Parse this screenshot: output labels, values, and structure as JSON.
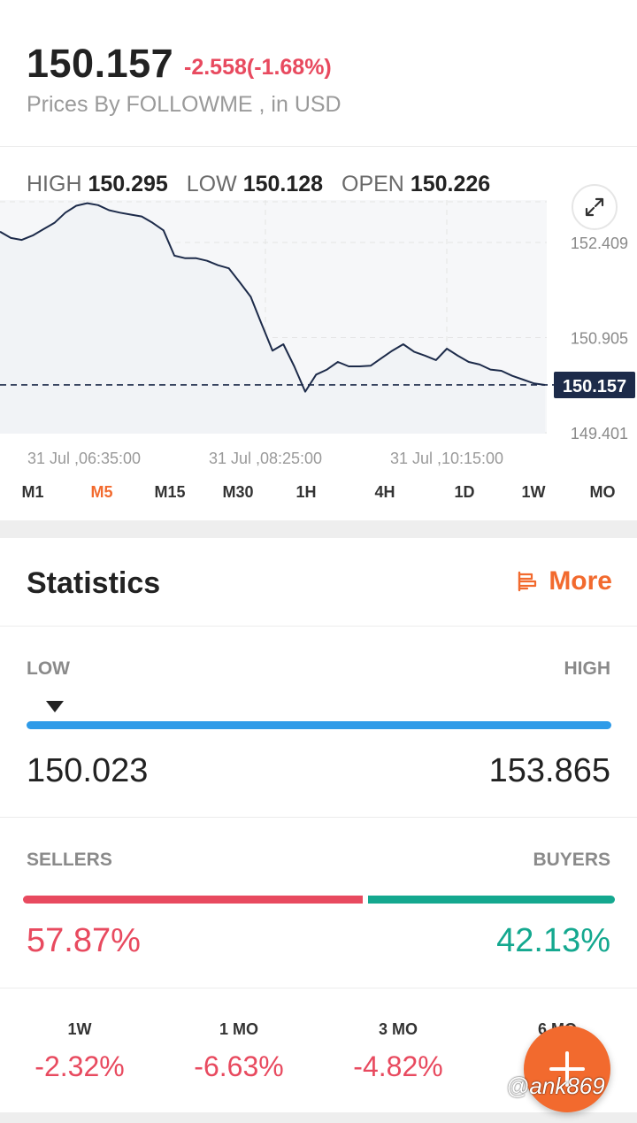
{
  "quote": {
    "price": "150.157",
    "change": "-2.558(-1.68%)",
    "source": "Prices By FOLLOWME , in USD"
  },
  "ohlc": {
    "high_label": "HIGH",
    "high_value": "150.295",
    "low_label": "LOW",
    "low_value": "150.128",
    "open_label": "OPEN",
    "open_value": "150.226"
  },
  "chart_data": {
    "type": "line",
    "y_ticks": [
      "152.409",
      "150.905",
      "149.401"
    ],
    "x_ticks": [
      "31 Jul ,06:35:00",
      "31 Jul ,08:25:00",
      "31 Jul ,10:15:00"
    ],
    "ylim": [
      149.401,
      152.409
    ],
    "current_price_label": "150.157",
    "current_price": 150.157,
    "grid": true,
    "series": [
      {
        "x": [
          0,
          1,
          2,
          3,
          4,
          5,
          6,
          7,
          8,
          9,
          10,
          11,
          12,
          13,
          14,
          15,
          16,
          17,
          18,
          19,
          20,
          21,
          22,
          23,
          24,
          25,
          26,
          27,
          28,
          29,
          30,
          31,
          32,
          33,
          34,
          35,
          36,
          37,
          38,
          39,
          40,
          41,
          42,
          43,
          44,
          45,
          46,
          47,
          48,
          49,
          50
        ],
        "values": [
          152.58,
          152.48,
          152.45,
          152.52,
          152.62,
          152.72,
          152.88,
          152.99,
          153.03,
          153.0,
          152.92,
          152.88,
          152.85,
          152.82,
          152.72,
          152.6,
          152.2,
          152.16,
          152.16,
          152.12,
          152.05,
          152.0,
          151.78,
          151.55,
          151.12,
          150.7,
          150.8,
          150.45,
          150.05,
          150.32,
          150.4,
          150.52,
          150.45,
          150.45,
          150.46,
          150.58,
          150.7,
          150.8,
          150.68,
          150.62,
          150.55,
          150.73,
          150.62,
          150.52,
          150.48,
          150.4,
          150.38,
          150.3,
          150.24,
          150.18,
          150.157
        ]
      }
    ]
  },
  "timeframes": [
    "M1",
    "M5",
    "M15",
    "M30",
    "1H",
    "4H",
    "1D",
    "1W",
    "MO"
  ],
  "active_timeframe": "M5",
  "statistics": {
    "title": "Statistics",
    "more_label": "More"
  },
  "range": {
    "low_label": "LOW",
    "high_label": "HIGH",
    "low_value": "150.023",
    "high_value": "153.865",
    "marker_position": 0.035
  },
  "sentiment": {
    "sellers_label": "SELLERS",
    "buyers_label": "BUYERS",
    "sellers_value": "57.87%",
    "buyers_value": "42.13%",
    "sellers_fraction": 0.5787
  },
  "performance": [
    {
      "label": "1W",
      "value": "-2.32%"
    },
    {
      "label": "1 MO",
      "value": "-6.63%"
    },
    {
      "label": "3 MO",
      "value": "-4.82%"
    },
    {
      "label": "6 MO",
      "value": "+"
    }
  ],
  "watermark": "@ank869",
  "colors": {
    "accent": "#f26a2e",
    "negative": "#e84a5f",
    "positive": "#14a88f",
    "range_bar": "#2f9be8",
    "line": "#1d2b4a"
  },
  "icons": {
    "expand": "expand-icon",
    "more": "list-icon",
    "fab": "plus-icon"
  }
}
